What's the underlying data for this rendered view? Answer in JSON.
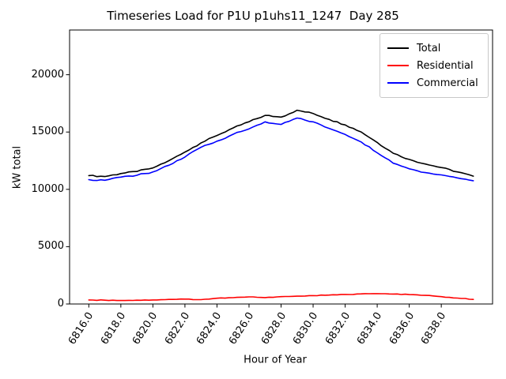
{
  "chart_data": {
    "type": "line",
    "title": "Timeseries Load for P1U p1uhs11_1247  Day 285",
    "xlabel": "Hour of Year",
    "ylabel": "kW total",
    "grid": false,
    "legend_position": "upper right",
    "xlim": [
      6814.8,
      6841.2
    ],
    "ylim": [
      0,
      23900
    ],
    "xticks": {
      "values": [
        6816,
        6818,
        6820,
        6822,
        6824,
        6826,
        6828,
        6830,
        6832,
        6834,
        6836,
        6838
      ],
      "labels": [
        "6816.0",
        "6818.0",
        "6820.0",
        "6822.0",
        "6824.0",
        "6826.0",
        "6828.0",
        "6830.0",
        "6832.0",
        "6834.0",
        "6836.0",
        "6838.0"
      ]
    },
    "yticks": {
      "values": [
        0,
        5000,
        10000,
        15000,
        20000
      ],
      "labels": [
        "0",
        "5000",
        "10000",
        "15000",
        "20000"
      ]
    },
    "x": [
      6816,
      6817,
      6818,
      6819,
      6820,
      6821,
      6822,
      6823,
      6824,
      6825,
      6826,
      6827,
      6828,
      6829,
      6830,
      6831,
      6832,
      6833,
      6834,
      6835,
      6836,
      6837,
      6838,
      6839,
      6840
    ],
    "series": [
      {
        "name": "Total",
        "color": "#000000",
        "values": [
          11200,
          11120,
          11380,
          11560,
          11870,
          12500,
          13250,
          14050,
          14700,
          15350,
          15900,
          16450,
          16300,
          16900,
          16620,
          16100,
          15620,
          15010,
          14090,
          13150,
          12610,
          12210,
          11900,
          11520,
          11150
        ]
      },
      {
        "name": "Residential",
        "color": "#ff0000",
        "values": [
          350,
          330,
          310,
          330,
          350,
          400,
          430,
          380,
          500,
          550,
          620,
          560,
          640,
          680,
          730,
          780,
          830,
          880,
          900,
          870,
          820,
          750,
          640,
          520,
          400
        ]
      },
      {
        "name": "Commercial",
        "color": "#0000ff",
        "values": [
          10850,
          10790,
          11070,
          11230,
          11520,
          12100,
          12820,
          13670,
          14200,
          14800,
          15280,
          15890,
          15660,
          16220,
          15890,
          15320,
          14790,
          14130,
          13190,
          12280,
          11790,
          11460,
          11260,
          11000,
          10750
        ]
      }
    ]
  }
}
